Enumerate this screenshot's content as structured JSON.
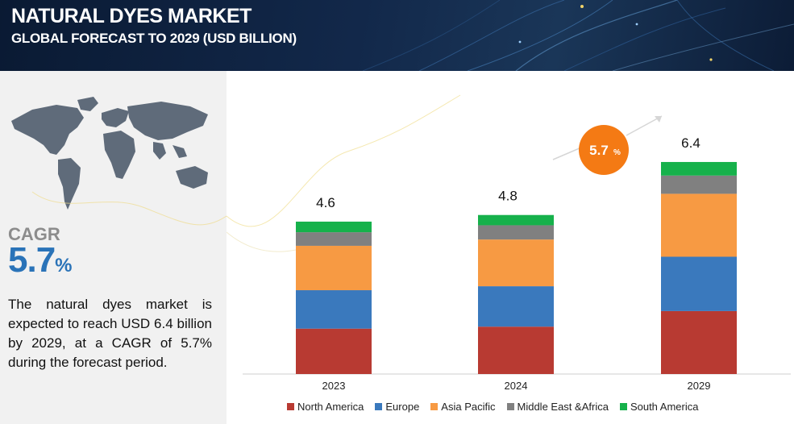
{
  "header": {
    "title": "NATURAL DYES MARKET",
    "subtitle": "GLOBAL FORECAST TO 2029 (USD BILLION)"
  },
  "left_panel": {
    "cagr_label": "CAGR",
    "cagr_value": "5.7",
    "cagr_unit": "%",
    "description": "The natural dyes market is expected to reach USD 6.4 billion by 2029, at a CAGR of 5.7% during the forecast period."
  },
  "chart_badge": {
    "value": "5.7",
    "unit": "%"
  },
  "colors": {
    "north_america": "#b83a32",
    "europe": "#3a79bd",
    "asia_pacific": "#f79a43",
    "middle_east_africa": "#808080",
    "south_america": "#16b14b",
    "badge": "#f47a14",
    "cagr_text": "#2a73b8"
  },
  "chart_data": {
    "type": "bar",
    "stacked": true,
    "categories": [
      "2023",
      "2024",
      "2029"
    ],
    "totals": [
      "4.6",
      "4.8",
      "6.4"
    ],
    "series": [
      {
        "name": "North America",
        "values": [
          1.37,
          1.43,
          1.9
        ]
      },
      {
        "name": "Europe",
        "values": [
          1.16,
          1.22,
          1.64
        ]
      },
      {
        "name": "Asia Pacific",
        "values": [
          1.34,
          1.41,
          1.9
        ]
      },
      {
        "name": "Middle East &Africa",
        "values": [
          0.41,
          0.43,
          0.55
        ]
      },
      {
        "name": "South America",
        "values": [
          0.32,
          0.31,
          0.41
        ]
      }
    ],
    "ylim": [
      0,
      7
    ],
    "legend_position": "bottom",
    "grid": false
  }
}
